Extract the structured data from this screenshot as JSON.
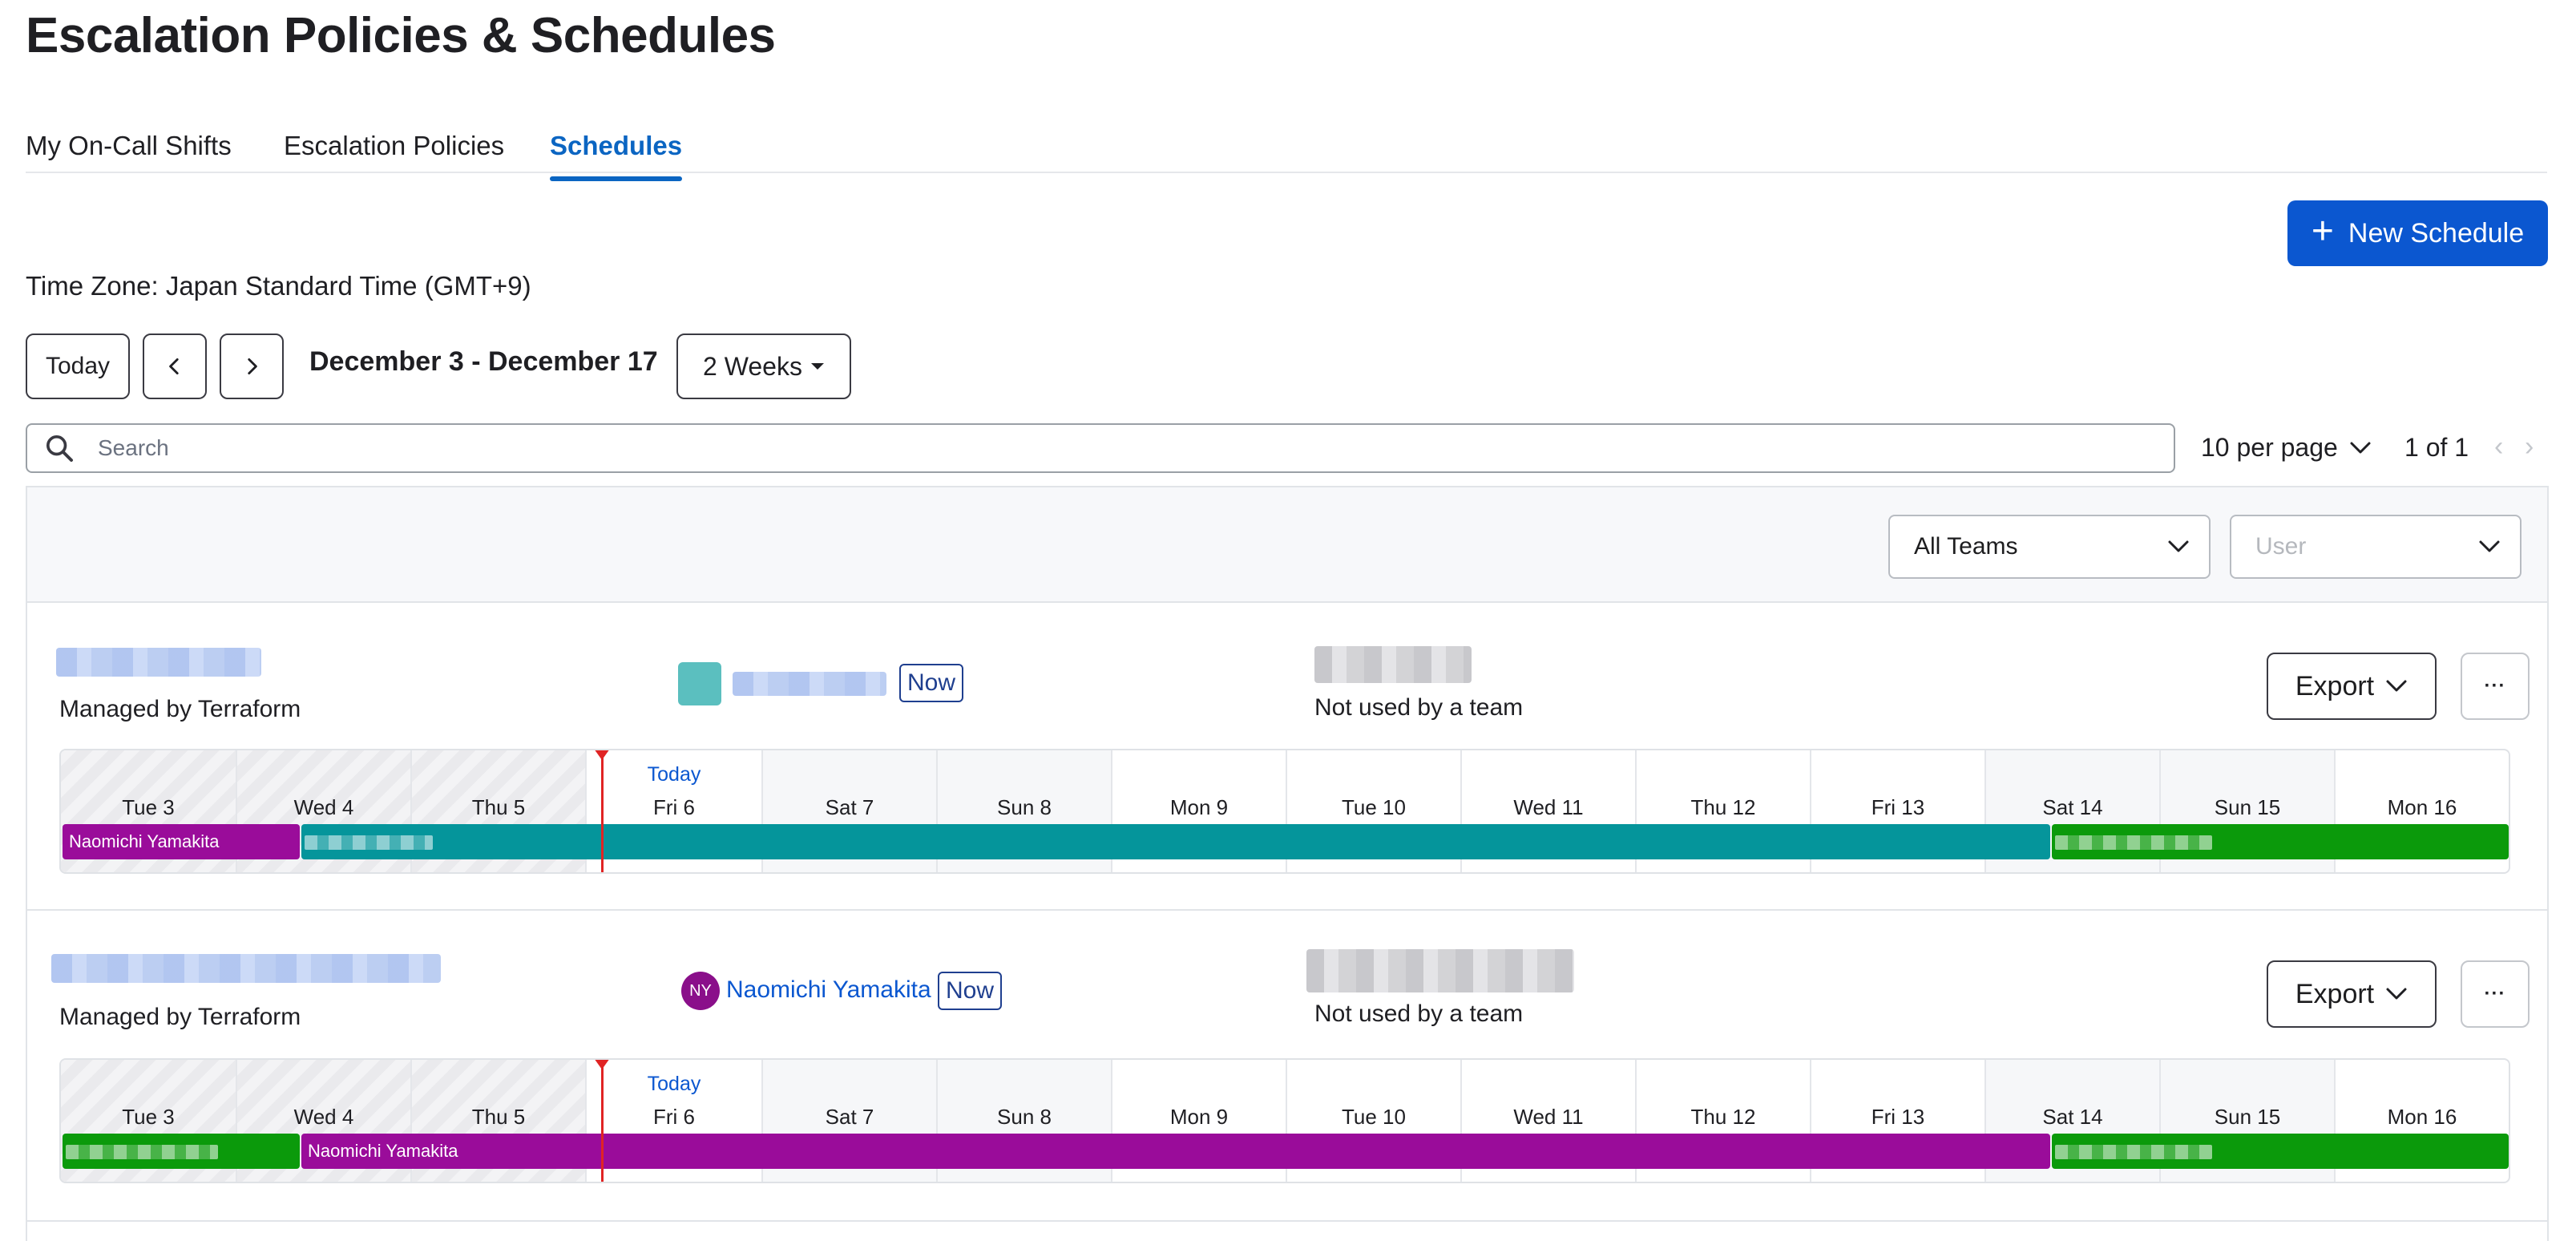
{
  "page_title": "Escalation Policies & Schedules",
  "tabs": [
    {
      "label": "My On-Call Shifts",
      "active": false
    },
    {
      "label": "Escalation Policies",
      "active": false
    },
    {
      "label": "Schedules",
      "active": true
    }
  ],
  "new_schedule_label": "New Schedule",
  "timezone_text": "Time Zone: Japan Standard Time (GMT+9)",
  "controls": {
    "today_label": "Today",
    "range_label": "December 3 - December 17",
    "view_select": "2 Weeks"
  },
  "search": {
    "placeholder": "Search",
    "value": ""
  },
  "pagination": {
    "per_page": "10 per page",
    "count": "1 of 1"
  },
  "filters": {
    "teams": "All Teams",
    "user_placeholder": "User"
  },
  "days": [
    "Tue 3",
    "Wed 4",
    "Thu 5",
    "Fri 6",
    "Sat 7",
    "Sun 8",
    "Mon 9",
    "Tue 10",
    "Wed 11",
    "Thu 12",
    "Fri 13",
    "Sat 14",
    "Sun 15",
    "Mon 16"
  ],
  "today_marker": "Today",
  "schedules": [
    {
      "managed_by": "Managed by Terraform",
      "now_badge": "Now",
      "team_status": "Not used by a team",
      "export_label": "Export",
      "more_label": "···",
      "shifts": [
        {
          "label": "Naomichi Yamakita",
          "color": "purple"
        },
        {
          "label": "",
          "color": "teal"
        },
        {
          "label": "",
          "color": "green"
        }
      ]
    },
    {
      "managed_by": "Managed by Terraform",
      "oncall_initials": "NY",
      "oncall_name": "Naomichi Yamakita",
      "now_badge": "Now",
      "team_status": "Not used by a team",
      "export_label": "Export",
      "more_label": "···",
      "shifts": [
        {
          "label": "",
          "color": "green"
        },
        {
          "label": "Naomichi Yamakita",
          "color": "purple"
        },
        {
          "label": "",
          "color": "green"
        }
      ]
    }
  ],
  "colors": {
    "accent": "#0b57d0",
    "tab_active": "#0b65c2",
    "shift_purple": "#9a0c9a",
    "shift_teal": "#05959b",
    "shift_green": "#0b9a0b",
    "now_line": "#e02424"
  },
  "icons": [
    "plus-icon",
    "chevron-left-icon",
    "chevron-right-icon",
    "caret-down-icon",
    "search-icon",
    "chevron-down-icon"
  ]
}
